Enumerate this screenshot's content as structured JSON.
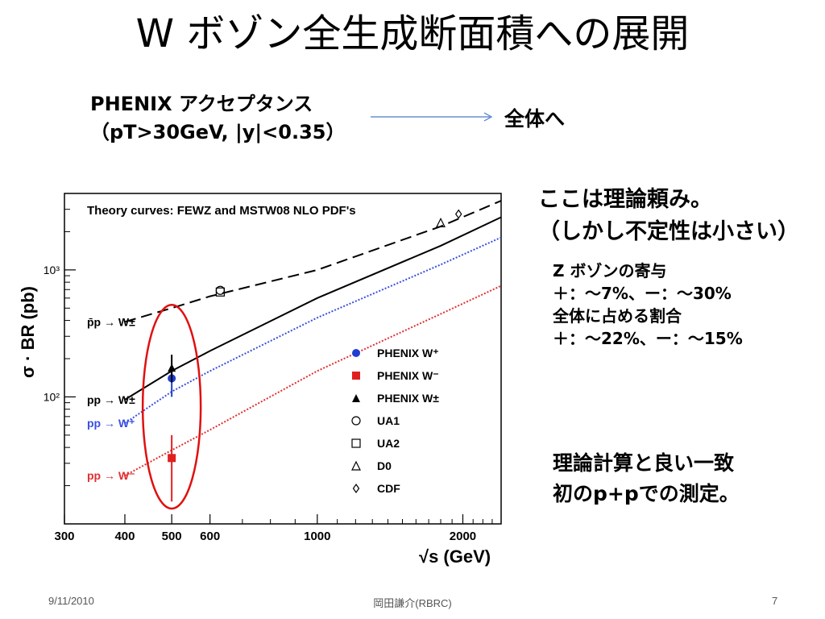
{
  "slide": {
    "title": "W ボゾン全生成断面積への展開",
    "acceptance_line1": "PHENIX アクセプタンス",
    "acceptance_line2": "（pT>30GeV, |y|<0.35）",
    "arrow_target": "全体へ",
    "theory_line1": "ここは理論頼み。",
    "theory_line2": "（しかし不定性は小さい）",
    "z_title": "Z ボゾンの寄与",
    "z_line1": "＋：～7%、ー：～30%",
    "z_line2": "全体に占める割合",
    "z_line3": "＋：～22%、ー：～15%",
    "agree_line1": "理論計算と良い一致",
    "agree_line2": "初のp+pでの測定。"
  },
  "footer": {
    "date": "9/11/2010",
    "author": "岡田謙介(RBRC)",
    "page": "7"
  },
  "chart_data": {
    "type": "scatter",
    "title": "Theory curves: FEWZ and MSTW08 NLO PDF's",
    "xlabel": "√s (GeV)",
    "ylabel": "σ · BR (pb)",
    "x_scale": "log",
    "y_scale": "log",
    "xlim": [
      300,
      2400
    ],
    "ylim": [
      10,
      4000
    ],
    "x_ticks": [
      "300",
      "400",
      "500",
      "600",
      "1000",
      "2000"
    ],
    "y_ticks": [
      "10²",
      "10³"
    ],
    "theory_curves": [
      {
        "name": "p̄p → W±",
        "color": "#000000",
        "dash": "long",
        "points": [
          [
            400,
            390
          ],
          [
            500,
            500
          ],
          [
            600,
            620
          ],
          [
            1000,
            1000
          ],
          [
            1800,
            2200
          ],
          [
            2400,
            3500
          ]
        ]
      },
      {
        "name": "pp → W±",
        "color": "#000000",
        "dash": "solid",
        "points": [
          [
            400,
            95
          ],
          [
            500,
            160
          ],
          [
            600,
            230
          ],
          [
            1000,
            600
          ],
          [
            1800,
            1550
          ],
          [
            2400,
            2600
          ]
        ]
      },
      {
        "name": "pp → W⁺",
        "color": "#3a4fe0",
        "dash": "dotted",
        "points": [
          [
            400,
            62
          ],
          [
            500,
            110
          ],
          [
            600,
            160
          ],
          [
            1000,
            420
          ],
          [
            1800,
            1100
          ],
          [
            2400,
            1800
          ]
        ]
      },
      {
        "name": "pp → W⁻",
        "color": "#e03030",
        "dash": "dotted",
        "points": [
          [
            400,
            24
          ],
          [
            500,
            38
          ],
          [
            600,
            55
          ],
          [
            1000,
            160
          ],
          [
            1800,
            450
          ],
          [
            2400,
            750
          ]
        ]
      }
    ],
    "measurements": [
      {
        "name": "PHENIX W⁺",
        "marker": "circle-filled",
        "color": "#1f3fd0",
        "x": 500,
        "y": 140,
        "err": [
          100,
          170
        ]
      },
      {
        "name": "PHENIX W⁻",
        "marker": "square-filled",
        "color": "#e02020",
        "x": 500,
        "y": 33,
        "err": [
          15,
          50
        ]
      },
      {
        "name": "PHENIX W±",
        "marker": "triangle-filled",
        "color": "#000000",
        "x": 500,
        "y": 170,
        "err": [
          130,
          215
        ]
      },
      {
        "name": "UA1",
        "marker": "circle-open",
        "color": "#000000",
        "x": 630,
        "y": 690,
        "err": null
      },
      {
        "name": "UA2",
        "marker": "square-open",
        "color": "#000000",
        "x": 630,
        "y": 670,
        "err": null
      },
      {
        "name": "D0",
        "marker": "triangle-open",
        "color": "#000000",
        "x": 1800,
        "y": 2350,
        "err": null
      },
      {
        "name": "CDF",
        "marker": "diamond-open",
        "color": "#000000",
        "x": 1960,
        "y": 2750,
        "err": null
      }
    ],
    "legend": [
      "PHENIX W⁺",
      "PHENIX W⁻",
      "PHENIX W±",
      "UA1",
      "UA2",
      "D0",
      "CDF"
    ],
    "legend_placement": "bottom-right",
    "highlight": {
      "type": "ellipse",
      "color": "#e01010",
      "x": 500
    }
  }
}
